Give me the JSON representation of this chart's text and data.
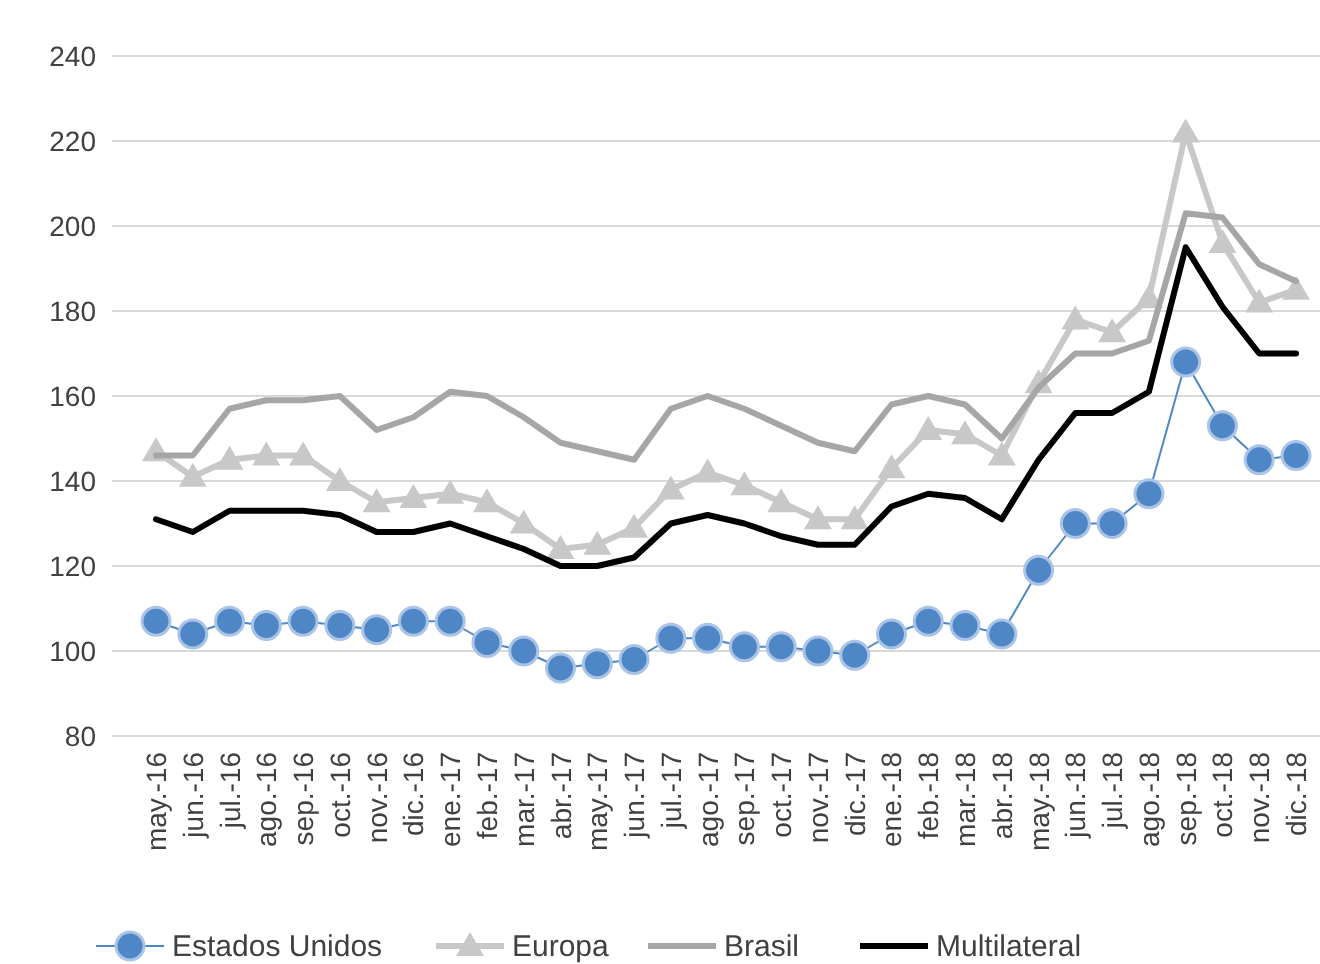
{
  "chart_data": {
    "type": "line",
    "categories": [
      "may.-16",
      "jun.-16",
      "jul.-16",
      "ago.-16",
      "sep.-16",
      "oct.-16",
      "nov.-16",
      "dic.-16",
      "ene.-17",
      "feb.-17",
      "mar.-17",
      "abr.-17",
      "may.-17",
      "jun.-17",
      "jul.-17",
      "ago.-17",
      "sep.-17",
      "oct.-17",
      "nov.-17",
      "dic.-17",
      "ene.-18",
      "feb.-18",
      "mar.-18",
      "abr.-18",
      "may.-18",
      "jun.-18",
      "jul.-18",
      "ago.-18",
      "sep.-18",
      "oct.-18",
      "nov.-18",
      "dic.-18"
    ],
    "series": [
      {
        "name": "Estados Unidos",
        "color": "#4f86c6",
        "marker": "circle",
        "values": [
          107,
          104,
          107,
          106,
          107,
          106,
          105,
          107,
          107,
          102,
          100,
          96,
          97,
          98,
          103,
          103,
          101,
          101,
          100,
          99,
          104,
          107,
          106,
          104,
          119,
          130,
          130,
          137,
          168,
          153,
          145,
          146
        ]
      },
      {
        "name": "Europa",
        "color": "#c8c8c8",
        "marker": "triangle",
        "values": [
          147,
          141,
          145,
          146,
          146,
          140,
          135,
          136,
          137,
          135,
          130,
          124,
          125,
          129,
          138,
          142,
          139,
          135,
          131,
          131,
          143,
          152,
          151,
          146,
          163,
          178,
          175,
          183,
          222,
          196,
          182,
          185
        ]
      },
      {
        "name": "Brasil",
        "color": "#a6a6a6",
        "marker": "none",
        "values": [
          146,
          146,
          157,
          159,
          159,
          160,
          152,
          155,
          161,
          160,
          155,
          149,
          147,
          145,
          157,
          160,
          157,
          153,
          149,
          147,
          158,
          160,
          158,
          150,
          162,
          170,
          170,
          173,
          203,
          202,
          191,
          187
        ]
      },
      {
        "name": "Multilateral",
        "color": "#000000",
        "marker": "none",
        "values": [
          131,
          128,
          133,
          133,
          133,
          132,
          128,
          128,
          130,
          127,
          124,
          120,
          120,
          122,
          130,
          132,
          130,
          127,
          125,
          125,
          134,
          137,
          136,
          131,
          145,
          156,
          156,
          161,
          195,
          181,
          170,
          170
        ]
      }
    ],
    "ylim": [
      80,
      240
    ],
    "yticks": [
      80,
      100,
      120,
      140,
      160,
      180,
      200,
      220,
      240
    ],
    "grid": "y",
    "legend": "bottom"
  }
}
